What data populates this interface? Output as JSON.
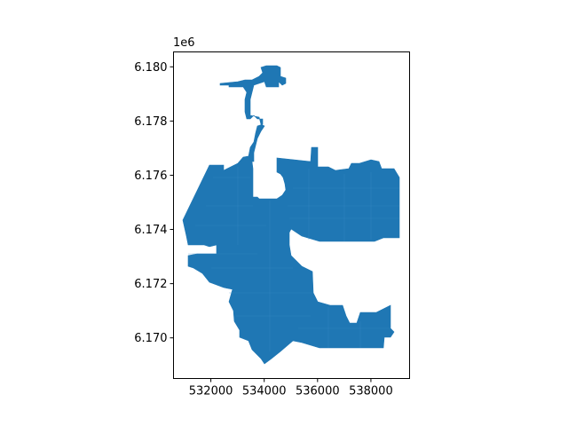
{
  "chart_data": {
    "type": "map",
    "title": "",
    "xlabel": "",
    "ylabel": "",
    "fill_color": "#1f77b4",
    "xlim": [
      530600,
      539450
    ],
    "ylim": [
      6168500,
      6180550
    ],
    "y_offset_label": "1e6",
    "x_ticks": [
      {
        "value": 532000,
        "label": "532000"
      },
      {
        "value": 534000,
        "label": "534000"
      },
      {
        "value": 536000,
        "label": "536000"
      },
      {
        "value": 538000,
        "label": "538000"
      }
    ],
    "y_ticks": [
      {
        "value": 6170000,
        "label": "6.170"
      },
      {
        "value": 6172000,
        "label": "6.172"
      },
      {
        "value": 6174000,
        "label": "6.174"
      },
      {
        "value": 6176000,
        "label": "6.176"
      },
      {
        "value": 6178000,
        "label": "6.178"
      },
      {
        "value": 6180000,
        "label": "6.180"
      }
    ]
  }
}
